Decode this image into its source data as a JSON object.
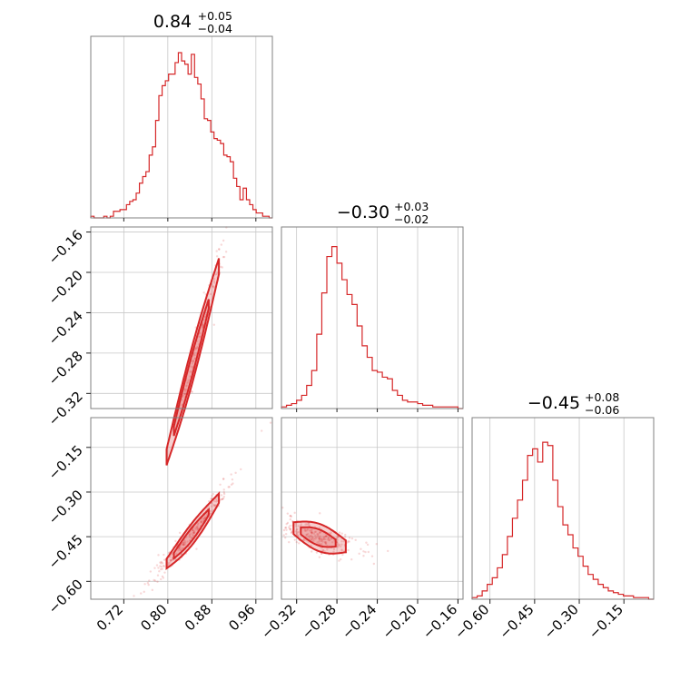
{
  "chart_data": {
    "type": "corner",
    "color": "#d62728",
    "parameters": [
      {
        "title": {
          "value": "0.84",
          "plus": "+0.05",
          "minus": "−0.04"
        },
        "range": [
          0.66,
          0.99
        ],
        "ticks": [
          0.72,
          0.8,
          0.88,
          0.96
        ],
        "tick_labels": [
          "0.72",
          "0.80",
          "0.88",
          "0.96"
        ],
        "hist_bins": [
          0.66,
          0.99
        ],
        "hist_counts": [
          0.01,
          0,
          0,
          0,
          0.01,
          0,
          0.01,
          0.04,
          0.04,
          0.05,
          0.05,
          0.08,
          0.1,
          0.11,
          0.15,
          0.21,
          0.25,
          0.28,
          0.38,
          0.43,
          0.59,
          0.74,
          0.8,
          0.83,
          0.87,
          0.87,
          0.94,
          1.0,
          0.95,
          0.93,
          0.87,
          0.99,
          0.85,
          0.81,
          0.72,
          0.6,
          0.59,
          0.52,
          0.48,
          0.47,
          0.45,
          0.38,
          0.37,
          0.34,
          0.24,
          0.19,
          0.11,
          0.18,
          0.11,
          0.08,
          0.05,
          0.03,
          0.03,
          0.01,
          0.01,
          0.0
        ]
      },
      {
        "title": {
          "value": "−0.30",
          "plus": "+0.03",
          "minus": "−0.02"
        },
        "range": [
          -0.335,
          -0.155
        ],
        "ticks": [
          -0.32,
          -0.28,
          -0.24,
          -0.2,
          -0.16
        ],
        "tick_labels": [
          "−0.32",
          "−0.28",
          "−0.24",
          "−0.20",
          "−0.16"
        ],
        "hist_bins": [
          -0.335,
          -0.155
        ],
        "hist_counts": [
          0.01,
          0.02,
          0.03,
          0.05,
          0.08,
          0.14,
          0.23,
          0.45,
          0.7,
          0.92,
          0.98,
          0.88,
          0.78,
          0.69,
          0.63,
          0.5,
          0.38,
          0.31,
          0.23,
          0.22,
          0.19,
          0.18,
          0.11,
          0.08,
          0.05,
          0.04,
          0.04,
          0.03,
          0.02,
          0.02,
          0.01,
          0.01,
          0.01,
          0.01,
          0.01,
          0.0
        ]
      },
      {
        "title": {
          "value": "−0.45",
          "plus": "+0.08",
          "minus": "−0.06"
        },
        "range": [
          -0.66,
          -0.05
        ],
        "ticks": [
          -0.6,
          -0.45,
          -0.3,
          -0.15
        ],
        "tick_labels": [
          "−0.60",
          "−0.45",
          "−0.30",
          "−0.15"
        ],
        "hist_bins": [
          -0.66,
          -0.05
        ],
        "hist_counts": [
          0.01,
          0.02,
          0.05,
          0.09,
          0.13,
          0.19,
          0.27,
          0.38,
          0.49,
          0.6,
          0.72,
          0.87,
          0.91,
          0.83,
          0.95,
          0.93,
          0.72,
          0.56,
          0.45,
          0.39,
          0.31,
          0.26,
          0.2,
          0.15,
          0.12,
          0.09,
          0.07,
          0.05,
          0.04,
          0.03,
          0.02,
          0.02,
          0.01,
          0.01,
          0.01,
          0.0
        ]
      }
    ],
    "pairs": [
      {
        "row": 1,
        "col": 0,
        "relation": [
          0.38,
          1.35
        ],
        "scatter_spread": 0.006,
        "center": 0.84
      },
      {
        "row": 2,
        "col": 0,
        "relation": [
          3.25,
          -3.18
        ],
        "scatter_spread": 0.012,
        "center": 0.84
      },
      {
        "row": 2,
        "col": 1,
        "relation": [
          2.45,
          0.28
        ],
        "scatter_spread": 0.015,
        "center": -0.3
      }
    ],
    "grid": true,
    "title": "",
    "xlabel": "",
    "ylabel": ""
  }
}
